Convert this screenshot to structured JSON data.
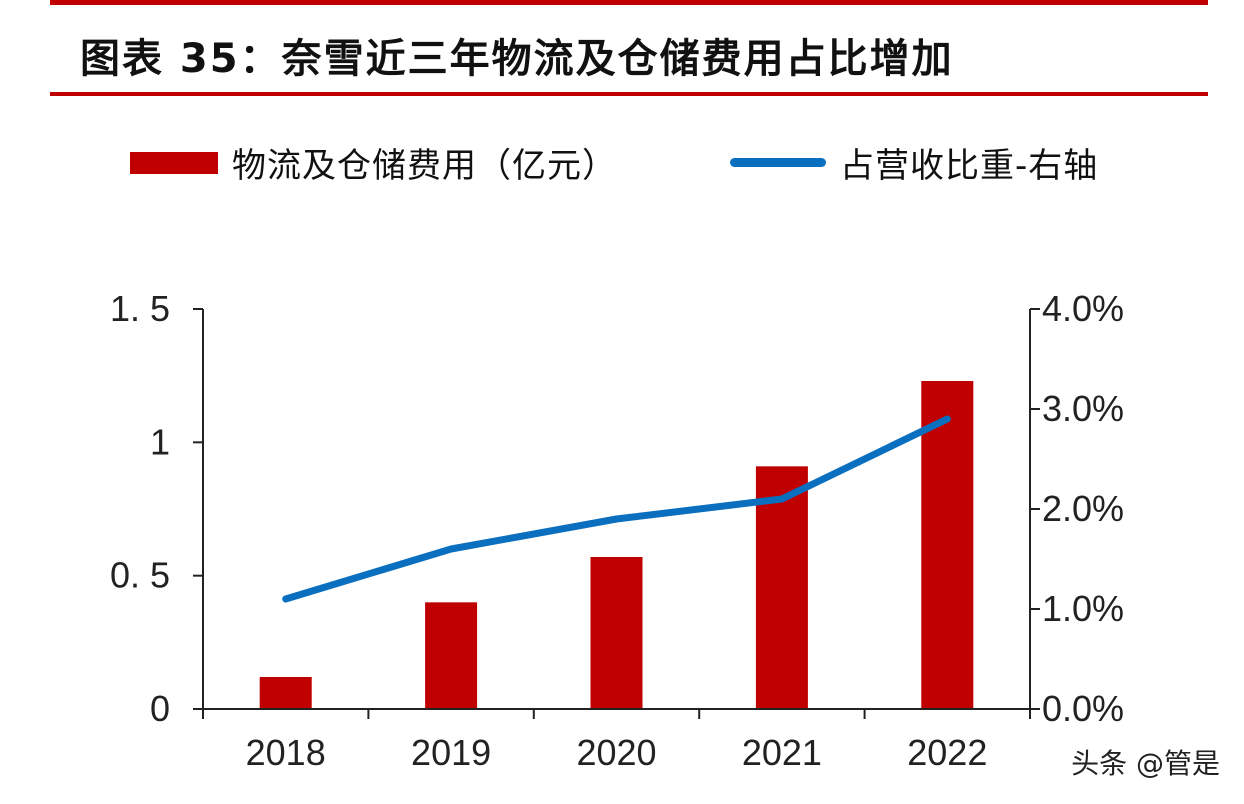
{
  "title": "图表 35：奈雪近三年物流及仓储费用占比增加",
  "watermark": "头条 @管是",
  "colors": {
    "bar": "#c00000",
    "line": "#0a6fbf",
    "rule": "#c00000"
  },
  "legend": {
    "bar_label": "物流及仓储费用（亿元）",
    "line_label": "占营收比重-右轴"
  },
  "chart_data": {
    "type": "bar",
    "categories": [
      "2018",
      "2019",
      "2020",
      "2021",
      "2022"
    ],
    "series": [
      {
        "name": "物流及仓储费用（亿元）",
        "type": "bar",
        "axis": "left",
        "values": [
          0.12,
          0.4,
          0.57,
          0.91,
          1.23
        ]
      },
      {
        "name": "占营收比重-右轴",
        "type": "line",
        "axis": "right",
        "values": [
          1.1,
          1.6,
          1.9,
          2.1,
          2.9
        ]
      }
    ],
    "left_axis": {
      "ylim": [
        0,
        1.5
      ],
      "ticks": [
        0,
        0.5,
        1,
        1.5
      ],
      "tick_labels": [
        "0",
        "0. 5",
        "1",
        "1. 5"
      ]
    },
    "right_axis": {
      "ylim": [
        0,
        4.0
      ],
      "ticks": [
        0,
        1,
        2,
        3,
        4
      ],
      "tick_labels": [
        "0.0%",
        "1.0%",
        "2.0%",
        "3.0%",
        "4.0%"
      ]
    }
  }
}
